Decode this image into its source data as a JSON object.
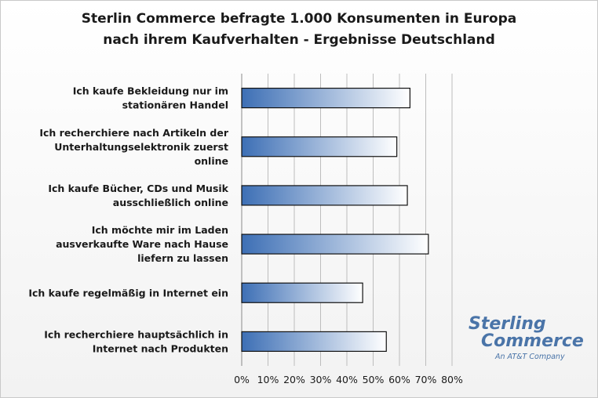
{
  "chart_data": {
    "type": "bar",
    "orientation": "horizontal",
    "title": [
      "Sterlin Commerce befragte 1.000 Konsumenten in Europa",
      "nach ihrem Kaufverhalten - Ergebnisse Deutschland"
    ],
    "categories": [
      [
        "Ich kaufe Bekleidung nur im",
        "stationären Handel"
      ],
      [
        "Ich recherchiere nach Artikeln der",
        "Unterhaltungselektronik zuerst",
        "online"
      ],
      [
        "Ich kaufe Bücher, CDs und Musik",
        "ausschließlich online"
      ],
      [
        "Ich möchte mir im Laden",
        "ausverkaufte Ware nach Hause",
        "liefern zu lassen"
      ],
      [
        "Ich kaufe regelmäßig in Internet ein"
      ],
      [
        "Ich recherchiere hauptsächlich in",
        "Internet nach Produkten"
      ]
    ],
    "values": [
      64,
      59,
      63,
      71,
      46,
      55
    ],
    "unit": "%",
    "xlim": [
      0,
      80
    ],
    "xticks": [
      "0%",
      "10%",
      "20%",
      "30%",
      "40%",
      "50%",
      "60%",
      "70%",
      "80%"
    ],
    "grid": true,
    "colors": {
      "bar_dark": "#3d6fb5",
      "bar_light": "#ffffff",
      "bar_stroke": "#111111",
      "grid": "#bdbdbd"
    }
  },
  "logo": {
    "line1": "Sterling",
    "line2": "Commerce",
    "line3": "An AT&T Company",
    "color": "#4a74a8"
  }
}
